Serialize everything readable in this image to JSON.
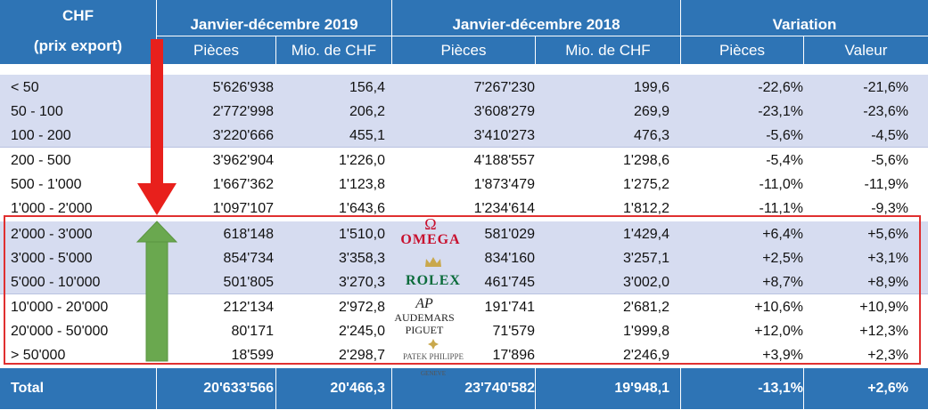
{
  "header": {
    "col0_line1": "CHF",
    "col0_line2": "(prix export)",
    "group_2019": "Janvier-décembre 2019",
    "group_2018": "Janvier-décembre 2018",
    "group_variation": "Variation",
    "pieces": "Pièces",
    "mio": "Mio. de CHF",
    "valeur": "Valeur"
  },
  "rows": [
    {
      "range": "< 50",
      "p2019": "5'626'938",
      "v2019": "156,4",
      "p2018": "7'267'230",
      "v2018": "199,6",
      "var_p": "-22,6%",
      "var_v": "-21,6%"
    },
    {
      "range": "50 - 100",
      "p2019": "2'772'998",
      "v2019": "206,2",
      "p2018": "3'608'279",
      "v2018": "269,9",
      "var_p": "-23,1%",
      "var_v": "-23,6%"
    },
    {
      "range": "100 - 200",
      "p2019": "3'220'666",
      "v2019": "455,1",
      "p2018": "3'410'273",
      "v2018": "476,3",
      "var_p": "-5,6%",
      "var_v": "-4,5%"
    },
    {
      "range": "200 - 500",
      "p2019": "3'962'904",
      "v2019": "1'226,0",
      "p2018": "4'188'557",
      "v2018": "1'298,6",
      "var_p": "-5,4%",
      "var_v": "-5,6%"
    },
    {
      "range": "500 - 1'000",
      "p2019": "1'667'362",
      "v2019": "1'123,8",
      "p2018": "1'873'479",
      "v2018": "1'275,2",
      "var_p": "-11,0%",
      "var_v": "-11,9%"
    },
    {
      "range": "1'000 - 2'000",
      "p2019": "1'097'107",
      "v2019": "1'643,6",
      "p2018": "1'234'614",
      "v2018": "1'812,2",
      "var_p": "-11,1%",
      "var_v": "-9,3%"
    },
    {
      "range": "2'000 - 3'000",
      "p2019": "618'148",
      "v2019": "1'510,0",
      "p2018": "581'029",
      "v2018": "1'429,4",
      "var_p": "+6,4%",
      "var_v": "+5,6%"
    },
    {
      "range": "3'000 - 5'000",
      "p2019": "854'734",
      "v2019": "3'358,3",
      "p2018": "834'160",
      "v2018": "3'257,1",
      "var_p": "+2,5%",
      "var_v": "+3,1%"
    },
    {
      "range": "5'000 - 10'000",
      "p2019": "501'805",
      "v2019": "3'270,3",
      "p2018": "461'745",
      "v2018": "3'002,0",
      "var_p": "+8,7%",
      "var_v": "+8,9%"
    },
    {
      "range": "10'000 - 20'000",
      "p2019": "212'134",
      "v2019": "2'972,8",
      "p2018": "191'741",
      "v2018": "2'681,2",
      "var_p": "+10,6%",
      "var_v": "+10,9%"
    },
    {
      "range": "20'000 - 50'000",
      "p2019": "80'171",
      "v2019": "2'245,0",
      "p2018": "71'579",
      "v2018": "1'999,8",
      "var_p": "+12,0%",
      "var_v": "+12,3%"
    },
    {
      "range": "> 50'000",
      "p2019": "18'599",
      "v2019": "2'298,7",
      "p2018": "17'896",
      "v2018": "2'246,9",
      "var_p": "+3,9%",
      "var_v": "+2,3%"
    }
  ],
  "total": {
    "label": "Total",
    "p2019": "20'633'566",
    "v2019": "20'466,3",
    "p2018": "23'740'582",
    "v2018": "19'948,1",
    "var_p": "-13,1%",
    "var_v": "+2,6%"
  },
  "logos": {
    "omega_symbol": "Ω",
    "omega": "OMEGA",
    "rolex": "ROLEX",
    "ap_mark": "AP",
    "ap": "AUDEMARS PIGUET",
    "pp": "PATEK PHILIPPE",
    "pp_sub": "GENEVE"
  },
  "colors": {
    "header_blue": "#2e74b5",
    "band_lavender": "#d6dcf0",
    "arrow_red": "#e8201c",
    "arrow_green": "#6aa84f",
    "box_red": "#e03030"
  }
}
